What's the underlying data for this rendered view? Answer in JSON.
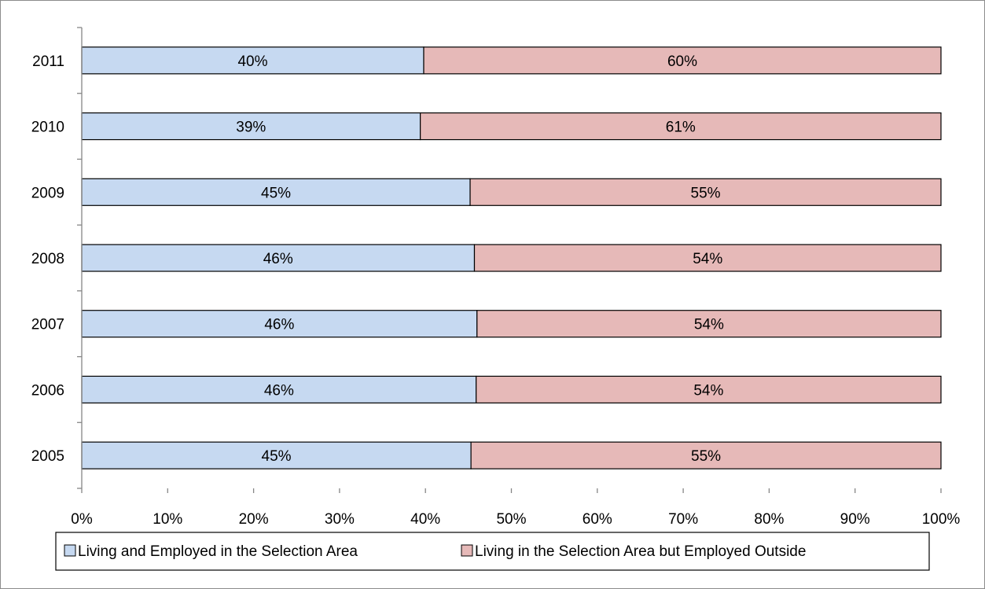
{
  "chart_data": {
    "type": "bar",
    "orientation": "horizontal",
    "stacked": true,
    "percent_stacked": true,
    "categories": [
      "2011",
      "2010",
      "2009",
      "2008",
      "2007",
      "2006",
      "2005"
    ],
    "series": [
      {
        "name": "Living and Employed in the Selection Area",
        "values": [
          39.8,
          39.4,
          45.2,
          45.7,
          46.0,
          45.9,
          45.3
        ],
        "labels": [
          "40%",
          "39%",
          "45%",
          "46%",
          "46%",
          "46%",
          "45%"
        ],
        "color": "#c6d9f1"
      },
      {
        "name": "Living in the Selection Area but Employed Outside",
        "values": [
          60.2,
          60.6,
          54.8,
          54.3,
          54.0,
          54.1,
          54.7
        ],
        "labels": [
          "60%",
          "61%",
          "55%",
          "54%",
          "54%",
          "54%",
          "55%"
        ],
        "color": "#e6b9b8"
      }
    ],
    "xlim": [
      0,
      100
    ],
    "xticks": [
      "0%",
      "10%",
      "20%",
      "30%",
      "40%",
      "50%",
      "60%",
      "70%",
      "80%",
      "90%",
      "100%"
    ],
    "grid": false,
    "legend": "bottom"
  }
}
